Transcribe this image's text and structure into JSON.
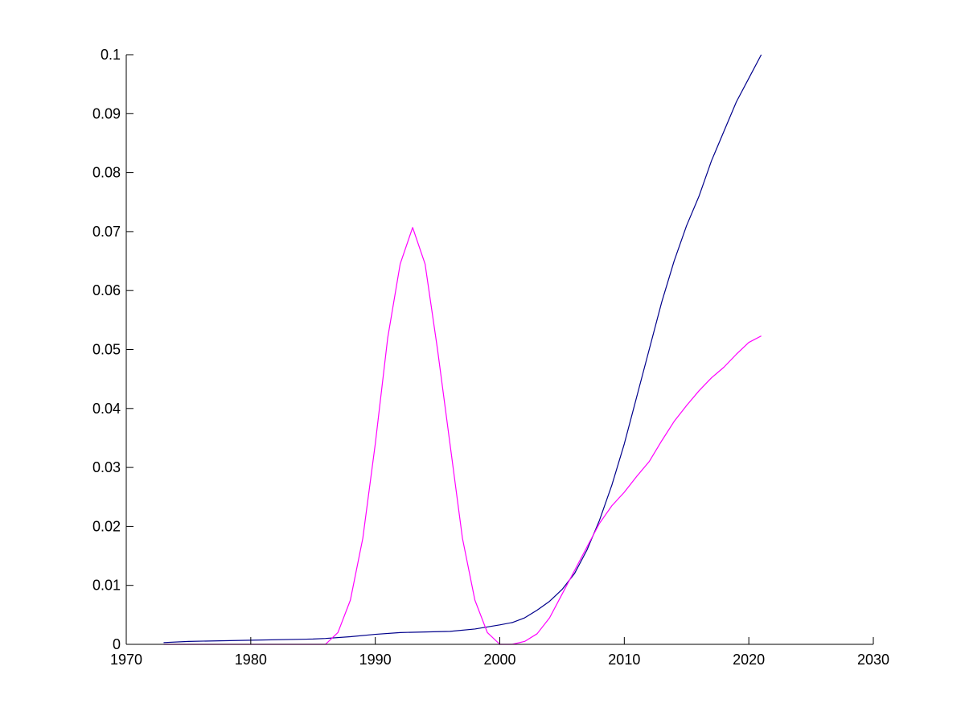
{
  "chart_data": {
    "type": "line",
    "title": "",
    "xlabel": "",
    "ylabel": "",
    "xlim": [
      1970,
      2030
    ],
    "ylim": [
      0,
      0.1
    ],
    "x_ticks": [
      1970,
      1980,
      1990,
      2000,
      2010,
      2020,
      2030
    ],
    "x_tick_labels": [
      "1970",
      "1980",
      "1990",
      "2000",
      "2010",
      "2020",
      "2030"
    ],
    "y_ticks": [
      0,
      0.01,
      0.02,
      0.03,
      0.04,
      0.05,
      0.06,
      0.07,
      0.08,
      0.09,
      0.1
    ],
    "y_tick_labels": [
      "0",
      "0.01",
      "0.02",
      "0.03",
      "0.04",
      "0.05",
      "0.06",
      "0.07",
      "0.08",
      "0.09",
      "0.1"
    ],
    "grid": false,
    "legend": "none",
    "series": [
      {
        "color": "#00008b",
        "x": [
          1973,
          1975,
          1980,
          1985,
          1986,
          1988,
          1990,
          1992,
          1994,
          1996,
          1998,
          2000,
          2001,
          2002,
          2003,
          2004,
          2005,
          2006,
          2007,
          2008,
          2009,
          2010,
          2011,
          2012,
          2013,
          2014,
          2015,
          2016,
          2017,
          2018,
          2019,
          2020,
          2021
        ],
        "y": [
          0.0003,
          0.0005,
          0.0007,
          0.0009,
          0.001,
          0.0013,
          0.0017,
          0.002,
          0.0021,
          0.0022,
          0.0026,
          0.0033,
          0.0037,
          0.0045,
          0.0058,
          0.0073,
          0.0093,
          0.012,
          0.016,
          0.021,
          0.027,
          0.034,
          0.042,
          0.05,
          0.058,
          0.065,
          0.071,
          0.076,
          0.082,
          0.087,
          0.092,
          0.096,
          0.1
        ]
      },
      {
        "color": "#ff00ff",
        "x": [
          1973,
          1980,
          1986,
          1987,
          1988,
          1989,
          1990,
          1991,
          1992,
          1993,
          1994,
          1995,
          1996,
          1997,
          1998,
          1999,
          2000,
          2001,
          2002,
          2003,
          2004,
          2005,
          2006,
          2007,
          2008,
          2009,
          2010,
          2011,
          2012,
          2013,
          2014,
          2015,
          2016,
          2017,
          2018,
          2019,
          2020,
          2021
        ],
        "y": [
          0,
          0,
          0,
          0.002,
          0.0075,
          0.018,
          0.034,
          0.052,
          0.0645,
          0.0707,
          0.0645,
          0.05,
          0.034,
          0.018,
          0.0075,
          0.002,
          0,
          0,
          0.0005,
          0.0018,
          0.0045,
          0.0085,
          0.0125,
          0.0165,
          0.0205,
          0.0235,
          0.0258,
          0.0285,
          0.031,
          0.0345,
          0.0378,
          0.0405,
          0.043,
          0.0452,
          0.047,
          0.0492,
          0.0512,
          0.0523
        ]
      }
    ]
  }
}
